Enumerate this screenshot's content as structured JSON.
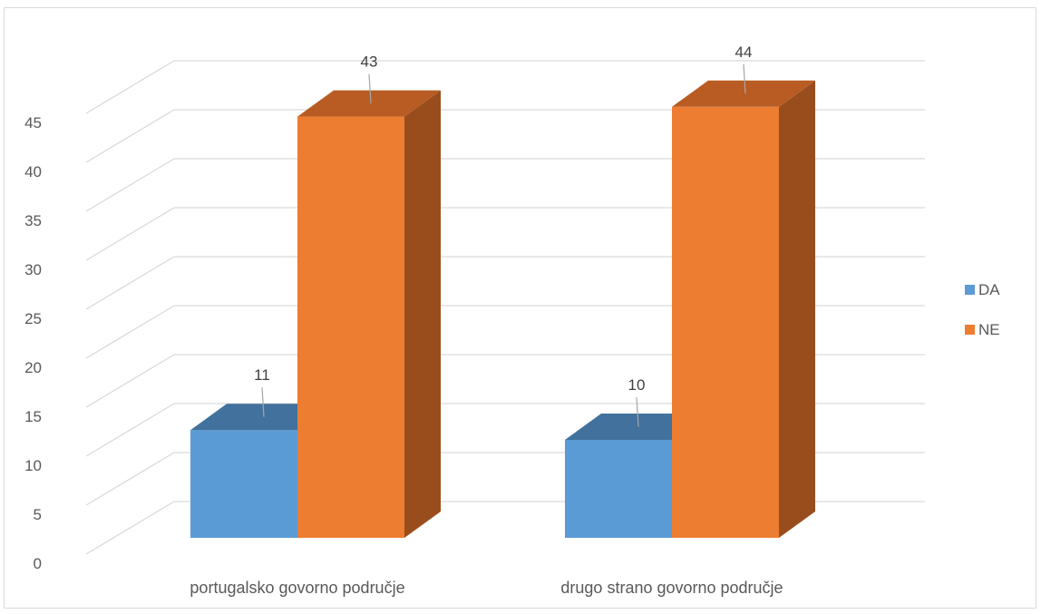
{
  "chart_data": {
    "type": "bar",
    "title": "",
    "xlabel": "",
    "ylabel": "",
    "categories": [
      "portugalsko govorno područje",
      "drugo strano govorno područje"
    ],
    "series": [
      {
        "name": "DA",
        "values": [
          11,
          10
        ],
        "color": "#5b9bd5",
        "top_color": "#41719c"
      },
      {
        "name": "NE",
        "values": [
          43,
          44
        ],
        "color": "#ed7d31",
        "top_color": "#b85c23",
        "side_color": "#9a4d1c"
      }
    ],
    "ylim": [
      0,
      45
    ],
    "yticks": [
      0,
      5,
      10,
      15,
      20,
      25,
      30,
      35,
      40,
      45
    ],
    "grid": true,
    "three_d": true,
    "legend_position": "right",
    "grid_color": "#d9d9d9"
  }
}
